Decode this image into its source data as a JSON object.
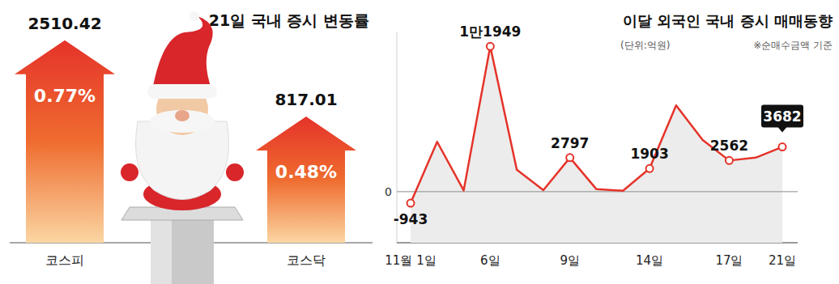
{
  "chart_data": [
    {
      "type": "bar",
      "title": "21일 국내 증시 변동률",
      "categories": [
        "코스피",
        "코스닥"
      ],
      "values": [
        0.77,
        0.48
      ],
      "value_labels": [
        "0.77%",
        "0.48%"
      ],
      "levels": [
        2510.42,
        817.01
      ],
      "ylim": [
        0,
        0.8
      ],
      "data_labels": true,
      "tick_labels": "x",
      "color": "#e5332a"
    },
    {
      "type": "line",
      "title": "이달 외국인 국내 증시 매매동향",
      "subtitle": "(단위:억원)",
      "annotations": [
        "※순매수금액 기준"
      ],
      "categories": [
        "11월 1일",
        null,
        null,
        "6일",
        null,
        null,
        "9일",
        null,
        null,
        "14일",
        null,
        null,
        "17일",
        null,
        "21일"
      ],
      "values": [
        -943,
        4100,
        100,
        11949,
        1800,
        130,
        2797,
        200,
        80,
        1903,
        7100,
        4250,
        2562,
        2800,
        3682
      ],
      "value_labels": [
        "-943",
        null,
        null,
        "1만1949",
        null,
        null,
        "2797",
        null,
        null,
        "1903",
        null,
        null,
        "2562",
        null,
        "3682"
      ],
      "ylim": [
        -4200,
        13100
      ],
      "yticks": [
        0
      ],
      "grid": true,
      "data_labels": true,
      "marker": "circle",
      "color": "#e5332a"
    }
  ]
}
